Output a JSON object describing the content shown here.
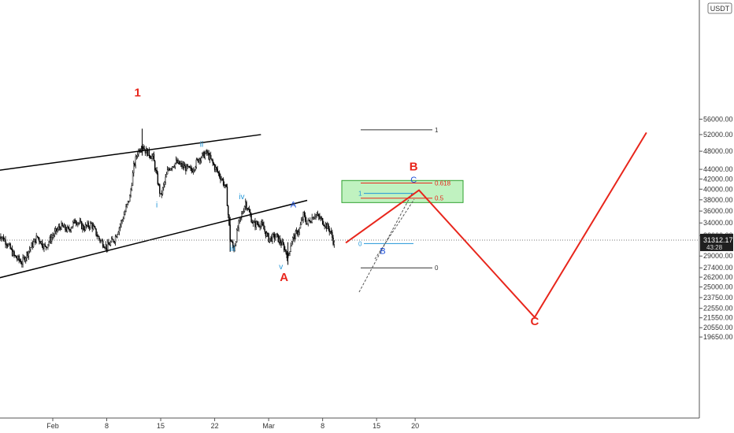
{
  "chart_data": {
    "type": "candlestick",
    "symbol": "BTC",
    "currency_badge": "USDT",
    "last_price": "31312.17",
    "countdown": "43:28",
    "y_axis": {
      "scale": "log",
      "ylim": [
        19000,
        62000
      ],
      "tick_labels": [
        "56000.00",
        "52000.00",
        "48000.00",
        "44000.00",
        "42000.00",
        "40000.00",
        "38000.00",
        "36000.00",
        "34000.00",
        "32000.00",
        "29000.00",
        "27400.00",
        "26200.00",
        "25000.00",
        "23750.00",
        "22550.00",
        "21550.00",
        "20550.00",
        "19650.00"
      ],
      "tick_values": [
        56000,
        52000,
        48000,
        44000,
        42000,
        40000,
        38000,
        36000,
        34000,
        32000,
        29000,
        27400,
        26200,
        25000,
        23750,
        22550,
        21550,
        20550,
        19650
      ],
      "partial_top_label": "6"
    },
    "x_axis": {
      "tick_labels": [
        "Feb",
        "8",
        "15",
        "22",
        "Mar",
        "8",
        "15",
        "20"
      ],
      "tick_days": [
        0,
        7,
        14,
        21,
        28,
        35,
        42,
        47
      ]
    },
    "price_path": [
      [
        -7,
        32300
      ],
      [
        -6,
        31000
      ],
      [
        -5,
        29000
      ],
      [
        -4,
        28100
      ],
      [
        -3,
        30000
      ],
      [
        -2,
        31800
      ],
      [
        -1,
        30200
      ],
      [
        0,
        32000
      ],
      [
        1,
        33500
      ],
      [
        2,
        32800
      ],
      [
        3,
        34500
      ],
      [
        4,
        33200
      ],
      [
        5,
        33800
      ],
      [
        6,
        31500
      ],
      [
        7,
        30300
      ],
      [
        8,
        31500
      ],
      [
        9,
        34500
      ],
      [
        10,
        38500
      ],
      [
        10.5,
        44500
      ],
      [
        11,
        47800
      ],
      [
        11.6,
        49600
      ],
      [
        12,
        48200
      ],
      [
        13,
        46600
      ],
      [
        14,
        38600
      ],
      [
        15,
        44200
      ],
      [
        16,
        45500
      ],
      [
        17,
        44500
      ],
      [
        18,
        43700
      ],
      [
        19,
        46500
      ],
      [
        20,
        47600
      ],
      [
        21,
        44500
      ],
      [
        22,
        41800
      ],
      [
        22.5,
        39800
      ],
      [
        23,
        31500
      ],
      [
        23.5,
        30000
      ],
      [
        24,
        33200
      ],
      [
        25,
        37600
      ],
      [
        26,
        33800
      ],
      [
        27,
        33900
      ],
      [
        28,
        31500
      ],
      [
        29,
        31900
      ],
      [
        30,
        30200
      ],
      [
        30.5,
        28900
      ],
      [
        31,
        31300
      ],
      [
        32,
        33000
      ],
      [
        32.5,
        35300
      ],
      [
        33,
        33900
      ],
      [
        34,
        35500
      ],
      [
        35,
        34300
      ],
      [
        36,
        32700
      ],
      [
        36.5,
        30700
      ]
    ],
    "channel": {
      "upper": [
        [
          -7,
          43800
        ],
        [
          27,
          52000
        ]
      ],
      "lower": [
        [
          -7,
          26100
        ],
        [
          33,
          37900
        ]
      ]
    },
    "wave_labels": [
      {
        "text": "1",
        "day": 11,
        "price": 62500,
        "color": "#e8261c"
      },
      {
        "text": "ii",
        "day": 19.3,
        "price": 49000,
        "color": "#2196d8"
      },
      {
        "text": "i",
        "day": 13.5,
        "price": 36600,
        "color": "#2196d8"
      },
      {
        "text": "iv",
        "day": 24.5,
        "price": 38100,
        "color": "#2196d8"
      },
      {
        "text": "iii",
        "day": 23.3,
        "price": 29700,
        "color": "#2196d8"
      },
      {
        "text": "v",
        "day": 29.6,
        "price": 27200,
        "color": "#2196d8"
      },
      {
        "text": "A",
        "day": 30,
        "price": 25700,
        "color": "#e8261c"
      },
      {
        "text": "A",
        "day": 31.2,
        "price": 36600,
        "color": "#1d4fd8"
      },
      {
        "text": "B",
        "day": 42.8,
        "price": 29300,
        "color": "#1d4fd8"
      },
      {
        "text": "B",
        "day": 46.8,
        "price": 43800,
        "color": "#e8261c"
      },
      {
        "text": "C",
        "day": 46.8,
        "price": 41300,
        "color": "#1d4fd8"
      },
      {
        "text": "C",
        "day": 62.5,
        "price": 20800,
        "color": "#e8261c"
      }
    ],
    "projection": [
      [
        38,
        30900
      ],
      [
        47.5,
        39800
      ],
      [
        62.5,
        21600
      ],
      [
        77,
        52500
      ]
    ],
    "fib_retracement": {
      "levels": [
        {
          "label": "1",
          "price": 53200,
          "color": "#333333"
        },
        {
          "label": "0.618",
          "price": 41200,
          "color": "#e8261c"
        },
        {
          "label": "0.5",
          "price": 38300,
          "color": "#e8261c"
        },
        {
          "label": "0",
          "price": 27400,
          "color": "#333333"
        }
      ]
    },
    "target_zone": {
      "price_top": 41700,
      "price_bottom": 37500
    },
    "fib_extension": {
      "levels": [
        {
          "label": "1",
          "price": 39200,
          "color": "#2196d8"
        },
        {
          "label": "0",
          "price": 30800,
          "color": "#2196d8"
        }
      ]
    }
  }
}
